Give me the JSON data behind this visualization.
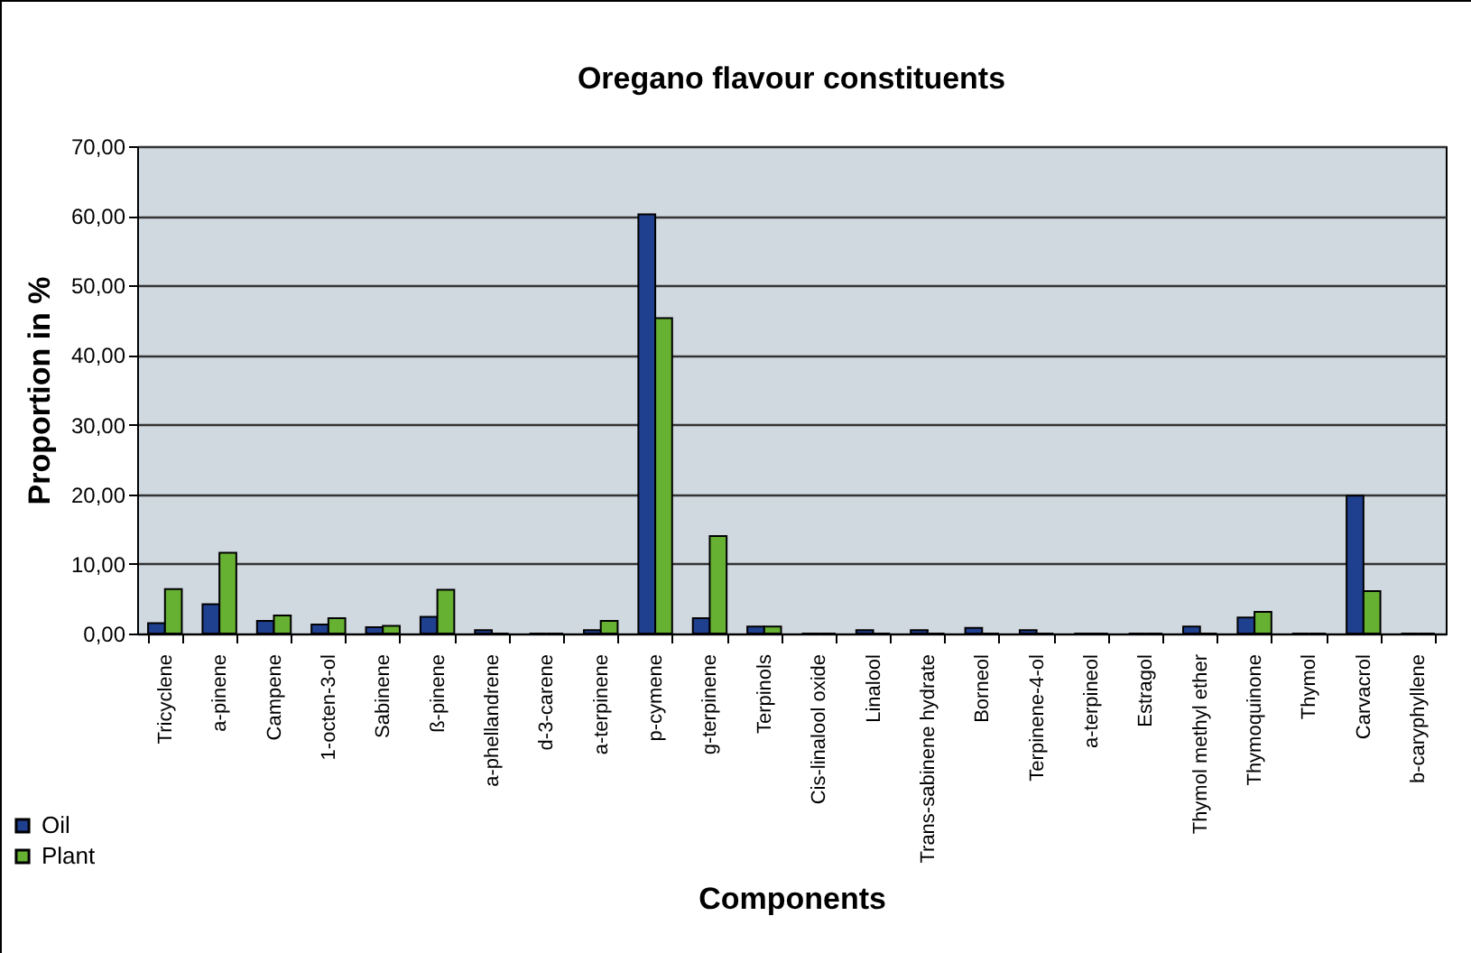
{
  "chart_data": {
    "type": "bar",
    "title": "Oregano flavour constituents",
    "xlabel": "Components",
    "ylabel": "Proportion in %",
    "categories": [
      "Tricyclene",
      "a-pinene",
      "Campene",
      "1-octen-3-ol",
      "Sabinene",
      "ß-pinene",
      "a-phellandrene",
      "d-3-carene",
      "a-terpinene",
      "p-cymene",
      "g-terpinene",
      "Terpinols",
      "Cis-linalool oxide",
      "Linalool",
      "Trans-sabinene hydrate",
      "Borneol",
      "Terpinene-4-ol",
      "a-terpineol",
      "Estragol",
      "Thymol methyl ether",
      "Thymoquinone",
      "Thymol",
      "Carvacrol",
      "b-caryphyllene"
    ],
    "series": [
      {
        "name": "Oil",
        "color": "#1f3f8f",
        "values": [
          1.5,
          4.2,
          1.8,
          1.3,
          0.9,
          2.4,
          0.5,
          0,
          0.5,
          60.2,
          2.2,
          1.0,
          0,
          0.5,
          0.5,
          0.8,
          0.5,
          0,
          0,
          1.0,
          2.3,
          0,
          19.8,
          0
        ]
      },
      {
        "name": "Plant",
        "color": "#66b032",
        "values": [
          6.4,
          11.6,
          2.6,
          2.2,
          1.1,
          6.3,
          0,
          0,
          1.8,
          45.3,
          14.0,
          1.0,
          0,
          0,
          0,
          0,
          0,
          0,
          0,
          0,
          3.1,
          0,
          6.1,
          0
        ]
      }
    ],
    "ylim": [
      0,
      70
    ],
    "yticks": [
      {
        "value": 0,
        "label": "0,00"
      },
      {
        "value": 10,
        "label": "10,00"
      },
      {
        "value": 20,
        "label": "20,00"
      },
      {
        "value": 30,
        "label": "30,00"
      },
      {
        "value": 40,
        "label": "40,00"
      },
      {
        "value": 50,
        "label": "50,00"
      },
      {
        "value": 60,
        "label": "60,00"
      },
      {
        "value": 70,
        "label": "70,00"
      }
    ],
    "grid": "y",
    "legend": "bottom left"
  }
}
